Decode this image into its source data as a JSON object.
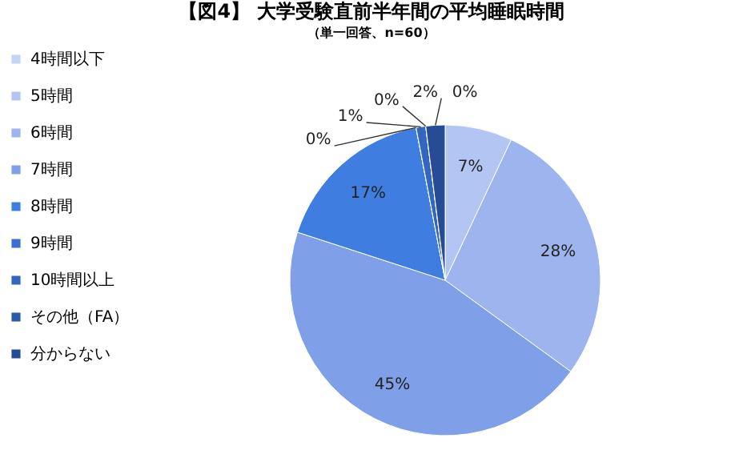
{
  "chart_data": {
    "type": "pie",
    "title": "【図4】 大学受験直前半年間の平均睡眠時間",
    "subtitle": "（単一回答、n=60）",
    "categories": [
      "4時間以下",
      "5時間",
      "6時間",
      "7時間",
      "8時間",
      "9時間",
      "10時間以上",
      "その他（FA）",
      "分からない"
    ],
    "values": [
      0,
      7,
      28,
      45,
      17,
      0,
      1,
      0,
      2
    ],
    "colors": [
      "#c5d3f5",
      "#b3c6f3",
      "#9db4ef",
      "#7f9fe9",
      "#3f7ee0",
      "#3a6fd0",
      "#3366c0",
      "#2c5aaa",
      "#254c94"
    ],
    "value_labels": [
      "0%",
      "7%",
      "28%",
      "45%",
      "17%",
      "0%",
      "1%",
      "0%",
      "2%"
    ],
    "legend": "left"
  }
}
